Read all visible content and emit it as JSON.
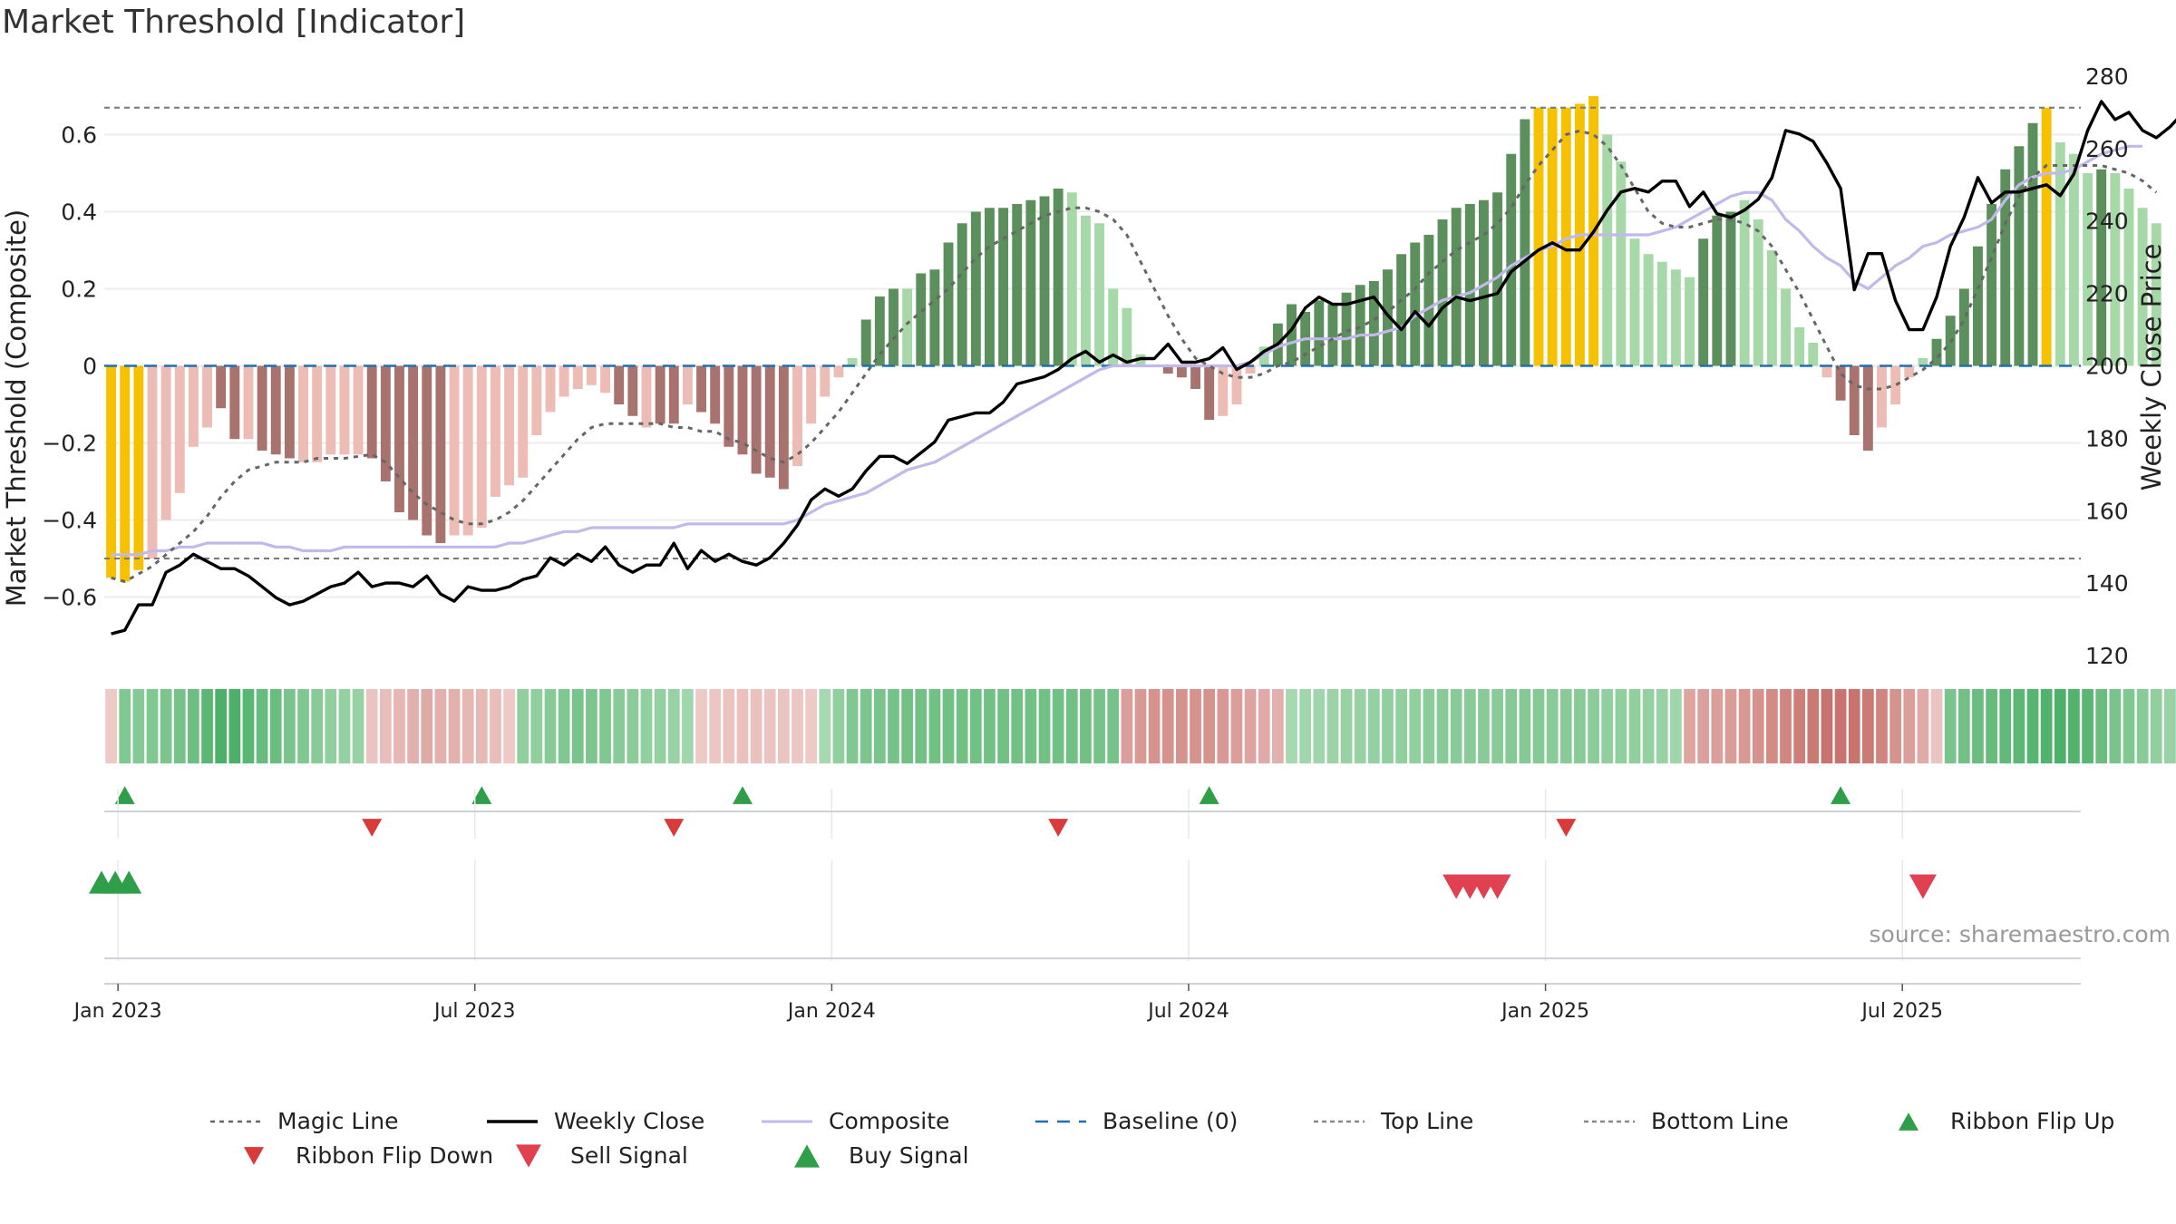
{
  "title": "Market Threshold [Indicator]",
  "source": "source: sharemaestro.com",
  "colors": {
    "pos_dark": "#5b8f5b",
    "pos_light": "#a7d8a7",
    "neg_dark": "#a8736e",
    "neg_light": "#ecbcb5",
    "extreme": "#f6c100",
    "magic": "#666666",
    "close": "#000000",
    "composite": "#c0b9ea",
    "baseline": "#1f6fb2",
    "buy": "#2e9e48",
    "sell": "#d93a3a"
  },
  "chart_data": {
    "type": "bar+line",
    "title": "Market Threshold [Indicator]",
    "ylabel": "Market Threshold (Composite)",
    "y2label": "Weekly Close Price",
    "ylim": [
      -0.78,
      0.78
    ],
    "y2lim": [
      117,
      283
    ],
    "y_ticks": [
      -0.6,
      -0.4,
      -0.2,
      0,
      0.2,
      0.4,
      0.6
    ],
    "y_tick_labels": [
      "−0.6",
      "−0.4",
      "−0.2",
      "0",
      "0.2",
      "0.4",
      "0.6"
    ],
    "y2_ticks": [
      120,
      140,
      160,
      180,
      200,
      220,
      240,
      260,
      280
    ],
    "top_line": 0.67,
    "bottom_line": -0.5,
    "x_tick_labels": [
      "Jan 2023",
      "Jul 2023",
      "Jan 2024",
      "Jul 2024",
      "Jan 2025",
      "Jul 2025"
    ],
    "x_tick_weeks": [
      1,
      27,
      53,
      79,
      105,
      131
    ],
    "weeks": 144,
    "composite_bars": [
      -0.55,
      -0.56,
      -0.53,
      -0.5,
      -0.4,
      -0.33,
      -0.21,
      -0.16,
      -0.11,
      -0.19,
      -0.19,
      -0.22,
      -0.23,
      -0.24,
      -0.25,
      -0.25,
      -0.23,
      -0.23,
      -0.23,
      -0.24,
      -0.3,
      -0.38,
      -0.4,
      -0.44,
      -0.46,
      -0.44,
      -0.44,
      -0.42,
      -0.34,
      -0.31,
      -0.29,
      -0.18,
      -0.12,
      -0.08,
      -0.06,
      -0.05,
      -0.07,
      -0.1,
      -0.13,
      -0.16,
      -0.15,
      -0.15,
      -0.1,
      -0.12,
      -0.15,
      -0.21,
      -0.23,
      -0.28,
      -0.29,
      -0.32,
      -0.26,
      -0.15,
      -0.08,
      -0.03,
      0.02,
      0.12,
      0.18,
      0.2,
      0.2,
      0.24,
      0.25,
      0.32,
      0.37,
      0.4,
      0.41,
      0.41,
      0.42,
      0.43,
      0.44,
      0.46,
      0.45,
      0.39,
      0.37,
      0.2,
      0.15,
      0.03,
      0.0,
      -0.02,
      -0.03,
      -0.06,
      -0.14,
      -0.13,
      -0.1,
      -0.02,
      0.05,
      0.11,
      0.16,
      0.14,
      0.17,
      0.16,
      0.19,
      0.21,
      0.22,
      0.25,
      0.29,
      0.32,
      0.34,
      0.38,
      0.41,
      0.42,
      0.43,
      0.45,
      0.55,
      0.64,
      0.67,
      0.67,
      0.67,
      0.68,
      0.7,
      0.6,
      0.53,
      0.33,
      0.29,
      0.27,
      0.25,
      0.23,
      0.33,
      0.39,
      0.4,
      0.43,
      0.38,
      0.3,
      0.2,
      0.1,
      0.06,
      -0.03,
      -0.09,
      -0.18,
      -0.22,
      -0.16,
      -0.1,
      -0.03,
      0.02,
      0.07,
      0.13,
      0.2,
      0.31,
      0.42,
      0.51,
      0.57,
      0.63,
      0.67,
      0.58,
      0.55,
      0.5,
      0.51,
      0.5,
      0.46,
      0.41,
      0.37
    ],
    "bar_colors": [
      "extreme",
      "extreme",
      "extreme",
      "neg_light",
      "neg_light",
      "neg_light",
      "neg_light",
      "neg_light",
      "neg_dark",
      "neg_dark",
      "neg_light",
      "neg_dark",
      "neg_dark",
      "neg_dark",
      "neg_light",
      "neg_light",
      "neg_light",
      "neg_light",
      "neg_light",
      "neg_dark",
      "neg_dark",
      "neg_dark",
      "neg_dark",
      "neg_dark",
      "neg_dark",
      "neg_light",
      "neg_light",
      "neg_light",
      "neg_light",
      "neg_light",
      "neg_light",
      "neg_light",
      "neg_light",
      "neg_light",
      "neg_light",
      "neg_light",
      "neg_light",
      "neg_dark",
      "neg_dark",
      "neg_light",
      "neg_dark",
      "neg_dark",
      "neg_light",
      "neg_dark",
      "neg_dark",
      "neg_dark",
      "neg_dark",
      "neg_dark",
      "neg_dark",
      "neg_dark",
      "neg_light",
      "neg_light",
      "neg_light",
      "neg_light",
      "pos_light",
      "pos_dark",
      "pos_dark",
      "pos_dark",
      "pos_light",
      "pos_dark",
      "pos_dark",
      "pos_dark",
      "pos_dark",
      "pos_dark",
      "pos_dark",
      "pos_dark",
      "pos_dark",
      "pos_dark",
      "pos_dark",
      "pos_dark",
      "pos_light",
      "pos_light",
      "pos_light",
      "pos_light",
      "pos_light",
      "pos_light",
      "pos_light",
      "neg_dark",
      "neg_dark",
      "neg_dark",
      "neg_dark",
      "neg_light",
      "neg_light",
      "neg_light",
      "pos_light",
      "pos_dark",
      "pos_dark",
      "pos_dark",
      "pos_dark",
      "pos_dark",
      "pos_dark",
      "pos_dark",
      "pos_dark",
      "pos_dark",
      "pos_dark",
      "pos_dark",
      "pos_dark",
      "pos_dark",
      "pos_dark",
      "pos_dark",
      "pos_dark",
      "pos_dark",
      "pos_dark",
      "pos_dark",
      "extreme",
      "extreme",
      "extreme",
      "extreme",
      "extreme",
      "pos_light",
      "pos_light",
      "pos_light",
      "pos_light",
      "pos_light",
      "pos_light",
      "pos_light",
      "pos_dark",
      "pos_dark",
      "pos_dark",
      "pos_light",
      "pos_light",
      "pos_light",
      "pos_light",
      "pos_light",
      "pos_light",
      "neg_light",
      "neg_dark",
      "neg_dark",
      "neg_dark",
      "neg_light",
      "neg_light",
      "neg_light",
      "pos_light",
      "pos_dark",
      "pos_dark",
      "pos_dark",
      "pos_dark",
      "pos_dark",
      "pos_dark",
      "pos_dark",
      "pos_dark",
      "extreme",
      "pos_light",
      "pos_light",
      "pos_light",
      "pos_dark",
      "pos_light",
      "pos_light",
      "pos_light",
      "pos_light"
    ],
    "series": [
      {
        "name": "Magic Line",
        "axis": "left",
        "values": [
          -0.55,
          -0.56,
          -0.54,
          -0.52,
          -0.49,
          -0.46,
          -0.43,
          -0.39,
          -0.34,
          -0.3,
          -0.27,
          -0.26,
          -0.25,
          -0.25,
          -0.25,
          -0.24,
          -0.24,
          -0.24,
          -0.235,
          -0.23,
          -0.25,
          -0.29,
          -0.33,
          -0.36,
          -0.38,
          -0.4,
          -0.41,
          -0.41,
          -0.4,
          -0.38,
          -0.35,
          -0.31,
          -0.27,
          -0.23,
          -0.19,
          -0.16,
          -0.15,
          -0.15,
          -0.15,
          -0.15,
          -0.15,
          -0.16,
          -0.16,
          -0.17,
          -0.17,
          -0.19,
          -0.2,
          -0.22,
          -0.24,
          -0.25,
          -0.23,
          -0.2,
          -0.16,
          -0.12,
          -0.07,
          -0.02,
          0.03,
          0.07,
          0.11,
          0.14,
          0.17,
          0.2,
          0.24,
          0.28,
          0.31,
          0.33,
          0.35,
          0.37,
          0.39,
          0.4,
          0.41,
          0.41,
          0.4,
          0.38,
          0.34,
          0.27,
          0.2,
          0.13,
          0.07,
          0.02,
          0.0,
          -0.02,
          -0.03,
          -0.03,
          -0.02,
          0.0,
          0.01,
          0.03,
          0.05,
          0.07,
          0.09,
          0.1,
          0.12,
          0.14,
          0.17,
          0.2,
          0.24,
          0.27,
          0.3,
          0.32,
          0.34,
          0.37,
          0.41,
          0.47,
          0.52,
          0.56,
          0.6,
          0.61,
          0.6,
          0.57,
          0.52,
          0.46,
          0.4,
          0.37,
          0.36,
          0.36,
          0.37,
          0.38,
          0.38,
          0.37,
          0.35,
          0.31,
          0.25,
          0.19,
          0.12,
          0.05,
          -0.02,
          -0.05,
          -0.06,
          -0.06,
          -0.05,
          -0.03,
          -0.01,
          0.02,
          0.06,
          0.12,
          0.2,
          0.28,
          0.37,
          0.44,
          0.49,
          0.52,
          0.52,
          0.52,
          0.52,
          0.52,
          0.51,
          0.5,
          0.48,
          0.45
        ]
      },
      {
        "name": "Weekly Close",
        "axis": "right",
        "values": [
          126,
          127,
          134,
          134,
          143,
          145,
          148,
          146,
          144,
          144,
          142,
          139,
          136,
          134,
          135,
          137,
          139,
          140,
          143,
          139,
          140,
          140,
          139,
          142,
          137,
          135,
          139,
          138,
          138,
          139,
          141,
          142,
          147,
          145,
          148,
          146,
          150,
          145,
          143,
          145,
          145,
          151,
          144,
          149,
          146,
          148,
          146,
          145,
          147,
          151,
          156,
          163,
          166,
          164,
          166,
          171,
          175,
          175,
          173,
          176,
          179,
          185,
          186,
          187,
          187,
          190,
          195,
          196,
          197,
          199,
          202,
          204,
          201,
          203,
          201,
          202,
          202,
          206,
          201,
          201,
          202,
          205,
          199,
          201,
          204,
          206,
          210,
          216,
          219,
          217,
          217,
          218,
          219,
          214,
          210,
          215,
          211,
          216,
          219,
          218,
          219,
          220,
          226,
          229,
          232,
          234,
          232,
          232,
          237,
          243,
          248,
          249,
          248,
          251,
          251,
          244,
          248,
          242,
          241,
          243,
          246,
          252,
          265,
          264,
          262,
          256,
          249,
          221,
          231,
          231,
          218,
          210,
          210,
          219,
          233,
          241,
          252,
          245,
          248,
          248,
          249,
          250,
          247,
          253,
          265,
          273,
          268,
          270,
          265,
          263,
          266,
          270,
          276,
          275,
          273,
          274,
          270
        ]
      },
      {
        "name": "Composite",
        "axis": "left",
        "values": [
          -0.49,
          -0.49,
          -0.49,
          -0.48,
          -0.48,
          -0.47,
          -0.47,
          -0.46,
          -0.46,
          -0.46,
          -0.46,
          -0.46,
          -0.47,
          -0.47,
          -0.48,
          -0.48,
          -0.48,
          -0.47,
          -0.47,
          -0.47,
          -0.47,
          -0.47,
          -0.47,
          -0.47,
          -0.47,
          -0.47,
          -0.47,
          -0.47,
          -0.47,
          -0.46,
          -0.46,
          -0.45,
          -0.44,
          -0.43,
          -0.43,
          -0.42,
          -0.42,
          -0.42,
          -0.42,
          -0.42,
          -0.42,
          -0.42,
          -0.41,
          -0.41,
          -0.41,
          -0.41,
          -0.41,
          -0.41,
          -0.41,
          -0.41,
          -0.4,
          -0.38,
          -0.36,
          -0.35,
          -0.34,
          -0.33,
          -0.31,
          -0.29,
          -0.27,
          -0.26,
          -0.25,
          -0.23,
          -0.21,
          -0.19,
          -0.17,
          -0.15,
          -0.13,
          -0.11,
          -0.09,
          -0.07,
          -0.05,
          -0.03,
          -0.01,
          0.0,
          0.0,
          0.0,
          0.0,
          0.0,
          0.0,
          0.0,
          0.0,
          0.0,
          0.0,
          0.01,
          0.03,
          0.05,
          0.06,
          0.07,
          0.07,
          0.07,
          0.07,
          0.08,
          0.08,
          0.09,
          0.1,
          0.13,
          0.15,
          0.17,
          0.18,
          0.19,
          0.21,
          0.23,
          0.26,
          0.28,
          0.3,
          0.31,
          0.33,
          0.34,
          0.34,
          0.34,
          0.34,
          0.34,
          0.34,
          0.35,
          0.36,
          0.38,
          0.4,
          0.42,
          0.44,
          0.45,
          0.45,
          0.43,
          0.38,
          0.35,
          0.31,
          0.28,
          0.26,
          0.22,
          0.2,
          0.23,
          0.26,
          0.28,
          0.31,
          0.32,
          0.34,
          0.35,
          0.36,
          0.38,
          0.43,
          0.47,
          0.49,
          0.5,
          0.5,
          0.51,
          0.53,
          0.55,
          0.56,
          0.57,
          0.57
        ]
      }
    ],
    "ribbon": [
      -0.15,
      0.55,
      0.52,
      0.55,
      0.58,
      0.62,
      0.68,
      0.78,
      0.88,
      0.88,
      0.8,
      0.72,
      0.7,
      0.6,
      0.55,
      0.5,
      0.45,
      0.42,
      0.4,
      -0.2,
      -0.25,
      -0.3,
      -0.35,
      -0.4,
      -0.35,
      -0.35,
      -0.3,
      -0.28,
      -0.25,
      -0.15,
      0.45,
      0.45,
      0.5,
      0.55,
      0.6,
      0.58,
      0.55,
      0.5,
      0.48,
      0.45,
      0.42,
      0.4,
      0.35,
      -0.15,
      -0.18,
      -0.2,
      -0.22,
      -0.22,
      -0.2,
      -0.2,
      -0.18,
      -0.15,
      0.3,
      0.45,
      0.55,
      0.58,
      0.6,
      0.62,
      0.65,
      0.65,
      0.65,
      0.65,
      0.65,
      0.65,
      0.65,
      0.65,
      0.65,
      0.65,
      0.65,
      0.65,
      0.65,
      0.65,
      0.62,
      0.62,
      -0.5,
      -0.55,
      -0.6,
      -0.6,
      -0.6,
      -0.6,
      -0.6,
      -0.55,
      -0.5,
      -0.45,
      -0.4,
      -0.35,
      0.3,
      0.35,
      0.35,
      0.38,
      0.4,
      0.4,
      0.42,
      0.45,
      0.45,
      0.45,
      0.48,
      0.5,
      0.5,
      0.5,
      0.5,
      0.5,
      0.52,
      0.52,
      0.52,
      0.5,
      0.5,
      0.5,
      0.48,
      0.45,
      0.45,
      0.45,
      0.42,
      0.4,
      0.35,
      -0.45,
      -0.48,
      -0.5,
      -0.52,
      -0.55,
      -0.6,
      -0.65,
      -0.7,
      -0.75,
      -0.8,
      -0.85,
      -0.85,
      -0.85,
      -0.8,
      -0.7,
      -0.6,
      -0.5,
      -0.4,
      -0.2,
      0.6,
      0.65,
      0.7,
      0.72,
      0.75,
      0.78,
      0.82,
      0.85,
      0.88,
      0.85,
      0.8,
      0.7,
      0.6,
      0.55,
      0.5,
      0.45,
      0.4,
      0.35
    ],
    "ribbon_flip_up_weeks": [
      1,
      27,
      46,
      80,
      126
    ],
    "ribbon_flip_down_weeks": [
      19,
      41,
      69,
      106
    ],
    "buy_signal_weeks": [
      -1,
      0,
      1
    ],
    "sell_signal_weeks": [
      98,
      99,
      100,
      101,
      132
    ],
    "legend": [
      {
        "label": "Magic Line",
        "kind": "dotted",
        "color": "#666666"
      },
      {
        "label": "Weekly Close",
        "kind": "solid",
        "color": "#000000"
      },
      {
        "label": "Composite",
        "kind": "solid-light",
        "color": "#c0b9ea"
      },
      {
        "label": "Baseline (0)",
        "kind": "dashed",
        "color": "#1f6fb2"
      },
      {
        "label": "Top Line",
        "kind": "dotted-light",
        "color": "#888888"
      },
      {
        "label": "Bottom Line",
        "kind": "dotted-light",
        "color": "#888888"
      },
      {
        "label": "Ribbon Flip Up",
        "kind": "tri-up-small",
        "color": "#2e9e48"
      },
      {
        "label": "Ribbon Flip Down",
        "kind": "tri-down-small",
        "color": "#d93a3a"
      },
      {
        "label": "Sell Signal",
        "kind": "tri-down-big",
        "color": "#e04050"
      },
      {
        "label": "Buy Signal",
        "kind": "tri-up-big",
        "color": "#2e9e48"
      }
    ]
  }
}
